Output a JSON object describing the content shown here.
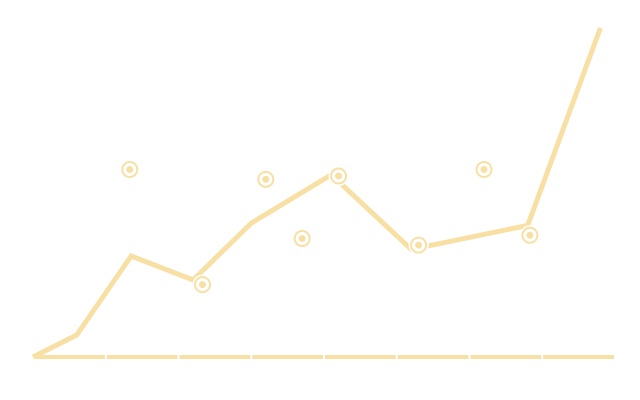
{
  "chart_data": {
    "type": "line",
    "title": "",
    "xlabel": "",
    "ylabel": "",
    "xlim": [
      0,
      8
    ],
    "ylim": [
      0,
      10
    ],
    "grid": false,
    "x_ticks": [
      0,
      1,
      2,
      3,
      4,
      5,
      6,
      7,
      8
    ],
    "series": [
      {
        "kind": "line",
        "x": [
          0,
          0.6,
          1.35,
          2.2,
          3.0,
          4.1,
          5.2,
          6.8,
          7.8
        ],
        "y": [
          0.0,
          0.67,
          3.07,
          2.34,
          4.07,
          5.54,
          3.27,
          4.0,
          10.0
        ]
      },
      {
        "kind": "scatter",
        "x": [
          1.33,
          2.33,
          3.2,
          3.7,
          4.2,
          5.3,
          6.2,
          6.83
        ],
        "y": [
          5.7,
          2.2,
          5.4,
          3.6,
          5.5,
          3.4,
          5.7,
          3.7
        ]
      }
    ],
    "colors": {
      "line": "#f8e0a4",
      "marker": "#f8e0a4",
      "axis": "#f8e0a4",
      "background": "#ffffff"
    }
  }
}
